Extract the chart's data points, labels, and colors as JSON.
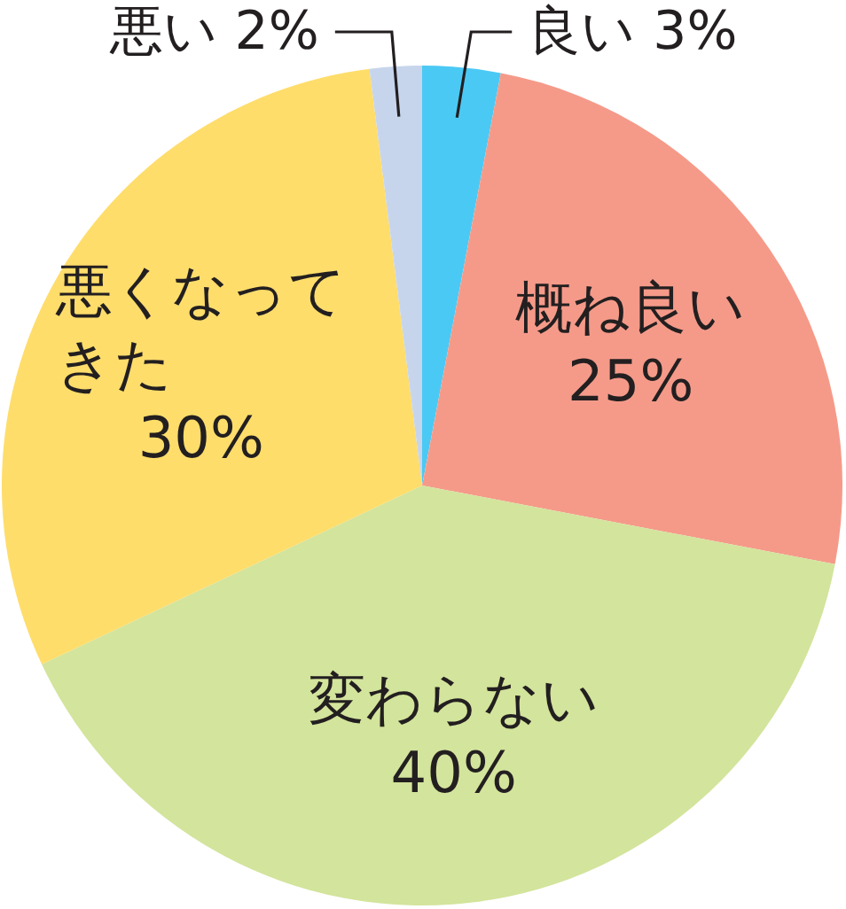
{
  "chart_data": {
    "type": "pie",
    "categories": [
      "良い",
      "概ね良い",
      "変わらない",
      "悪くなってきた",
      "悪い"
    ],
    "values": [
      3,
      25,
      40,
      30,
      2
    ],
    "colors": [
      "#4bc9f5",
      "#f59a89",
      "#d3e49c",
      "#fedd6b",
      "#c7d5ec"
    ],
    "value_labels": [
      "3%",
      "25%",
      "40%",
      "30%",
      "2%"
    ]
  }
}
